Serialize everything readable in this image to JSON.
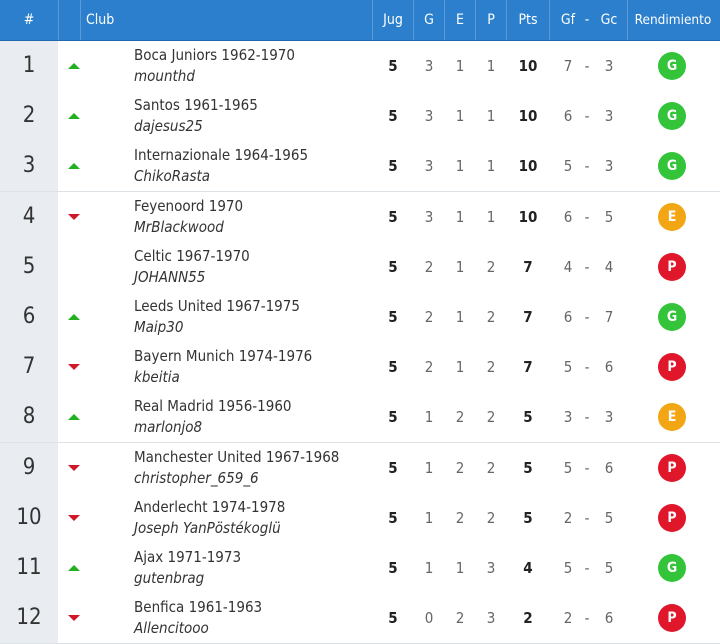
{
  "header": {
    "rank": "#",
    "club": "Club",
    "jug": "Jug",
    "g": "G",
    "e": "E",
    "p": "P",
    "pts": "Pts",
    "gf": "Gf",
    "dash": "-",
    "gc": "Gc",
    "rendimiento": "Rendimiento"
  },
  "colors": {
    "header_bg": "#2b7fcc",
    "up": "#22b020",
    "down": "#d0182b",
    "badge_G": "#33c43a",
    "badge_E": "#f2a614",
    "badge_P": "#e0162b"
  },
  "rows": [
    {
      "rank": "1",
      "trend": "up",
      "team": "Boca Juniors 1962-1970",
      "user": "mounthd",
      "jug": "5",
      "g": "3",
      "e": "1",
      "p": "1",
      "pts": "10",
      "gf": "7",
      "dash": "-",
      "gc": "3",
      "rend": "G"
    },
    {
      "rank": "2",
      "trend": "up",
      "team": "Santos 1961-1965",
      "user": "dajesus25",
      "jug": "5",
      "g": "3",
      "e": "1",
      "p": "1",
      "pts": "10",
      "gf": "6",
      "dash": "-",
      "gc": "3",
      "rend": "G"
    },
    {
      "rank": "3",
      "trend": "up",
      "team": "Internazionale 1964-1965",
      "user": "ChikoRasta",
      "jug": "5",
      "g": "3",
      "e": "1",
      "p": "1",
      "pts": "10",
      "gf": "5",
      "dash": "-",
      "gc": "3",
      "rend": "G"
    },
    {
      "rank": "4",
      "trend": "down",
      "team": "Feyenoord 1970",
      "user": "MrBlackwood",
      "jug": "5",
      "g": "3",
      "e": "1",
      "p": "1",
      "pts": "10",
      "gf": "6",
      "dash": "-",
      "gc": "5",
      "rend": "E"
    },
    {
      "rank": "5",
      "trend": "none",
      "team": "Celtic 1967-1970",
      "user": "JOHANN55",
      "jug": "5",
      "g": "2",
      "e": "1",
      "p": "2",
      "pts": "7",
      "gf": "4",
      "dash": "-",
      "gc": "4",
      "rend": "P"
    },
    {
      "rank": "6",
      "trend": "up",
      "team": "Leeds United 1967-1975",
      "user": "Maip30",
      "jug": "5",
      "g": "2",
      "e": "1",
      "p": "2",
      "pts": "7",
      "gf": "6",
      "dash": "-",
      "gc": "7",
      "rend": "G"
    },
    {
      "rank": "7",
      "trend": "down",
      "team": "Bayern Munich 1974-1976",
      "user": "kbeitia",
      "jug": "5",
      "g": "2",
      "e": "1",
      "p": "2",
      "pts": "7",
      "gf": "5",
      "dash": "-",
      "gc": "6",
      "rend": "P"
    },
    {
      "rank": "8",
      "trend": "up",
      "team": "Real Madrid 1956-1960",
      "user": "marlonjo8",
      "jug": "5",
      "g": "1",
      "e": "2",
      "p": "2",
      "pts": "5",
      "gf": "3",
      "dash": "-",
      "gc": "3",
      "rend": "E"
    },
    {
      "rank": "9",
      "trend": "down",
      "team": "Manchester United 1967-1968",
      "user": "christopher_659_6",
      "jug": "5",
      "g": "1",
      "e": "2",
      "p": "2",
      "pts": "5",
      "gf": "5",
      "dash": "-",
      "gc": "6",
      "rend": "P"
    },
    {
      "rank": "10",
      "trend": "down",
      "team": "Anderlecht 1974-1978",
      "user": "Joseph YanPöstékoglü",
      "jug": "5",
      "g": "1",
      "e": "2",
      "p": "2",
      "pts": "5",
      "gf": "2",
      "dash": "-",
      "gc": "5",
      "rend": "P"
    },
    {
      "rank": "11",
      "trend": "up",
      "team": "Ajax 1971-1973",
      "user": "gutenbrag",
      "jug": "5",
      "g": "1",
      "e": "1",
      "p": "3",
      "pts": "4",
      "gf": "5",
      "dash": "-",
      "gc": "5",
      "rend": "G"
    },
    {
      "rank": "12",
      "trend": "down",
      "team": "Benfica 1961-1963",
      "user": "Allencitooo",
      "jug": "5",
      "g": "0",
      "e": "2",
      "p": "3",
      "pts": "2",
      "gf": "2",
      "dash": "-",
      "gc": "6",
      "rend": "P"
    }
  ]
}
